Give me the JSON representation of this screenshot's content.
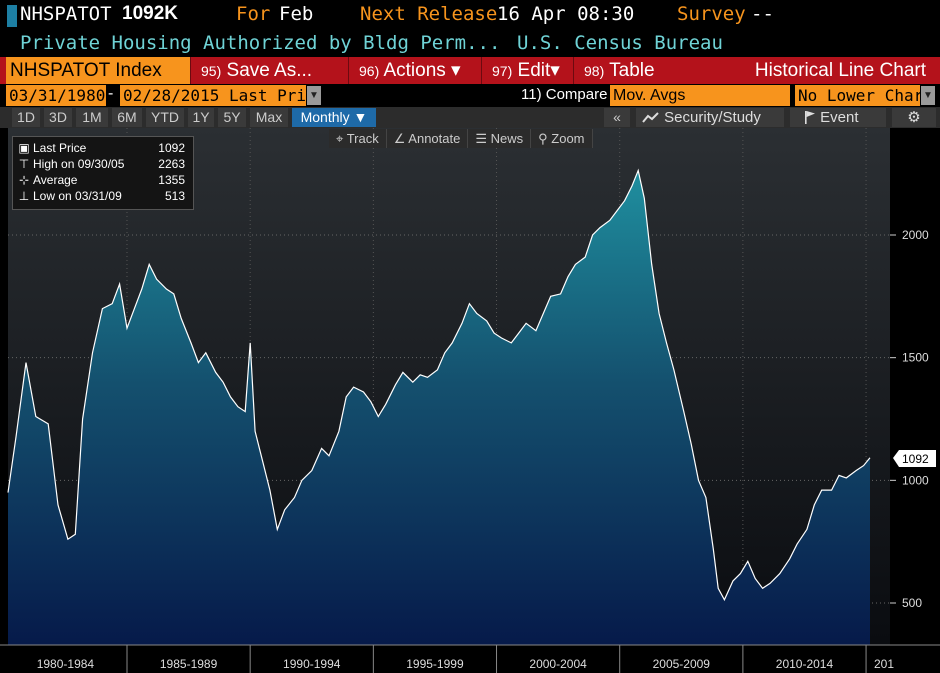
{
  "header": {
    "ticker": "NHSPATOT",
    "price": "1092K",
    "for_label": "For",
    "for_value": "Feb",
    "next_release_label": "Next Release",
    "next_release_value": "16 Apr 08:30",
    "survey_label": "Survey",
    "survey_value": "--",
    "description": "Private Housing Authorized by Bldg Perm...",
    "source": "U.S. Census Bureau"
  },
  "menu": {
    "index_label": "NHSPATOT Index",
    "save_as": {
      "num": "95)",
      "label": "Save As..."
    },
    "actions": {
      "num": "96)",
      "label": "Actions ▾"
    },
    "edit": {
      "num": "97)",
      "label": "Edit▾"
    },
    "table": {
      "num": "98)",
      "label": "Table"
    },
    "chart_type": "Historical Line Chart"
  },
  "range": {
    "start": "03/31/1980",
    "end": "02/28/2015",
    "price_type": "Last Price",
    "compare_label": "11) Compare",
    "compare_value": "Mov. Avgs",
    "lower_chart": "No Lower Chart"
  },
  "periods": [
    "1D",
    "3D",
    "1M",
    "6M",
    "YTD",
    "1Y",
    "5Y",
    "Max"
  ],
  "frequency": "Monthly ▼",
  "toolbar": {
    "security_study": "Security/Study",
    "event": "Event",
    "track": "Track",
    "annotate": "Annotate",
    "news": "News",
    "zoom": "Zoom"
  },
  "legend": {
    "last": {
      "label": "Last Price",
      "value": "1092"
    },
    "high": {
      "label": "High on 09/30/05",
      "value": "2263"
    },
    "average": {
      "label": "Average",
      "value": "1355"
    },
    "low": {
      "label": "Low on 03/31/09",
      "value": "513"
    }
  },
  "last_value_tag": "1092",
  "colors": {
    "orange": "#f7941d",
    "menu_red": "#b4121b",
    "teal_text": "#6fd3d6",
    "active_blue": "#1e6aa8"
  },
  "chart_data": {
    "type": "area",
    "ylim": [
      400,
      2400
    ],
    "y_ticks": [
      500,
      1000,
      1500,
      2000
    ],
    "x_labels": [
      "1980-1984",
      "1985-1989",
      "1990-1994",
      "1995-1999",
      "2000-2004",
      "2005-2009",
      "2010-2014",
      "201"
    ],
    "series": [
      {
        "values": [
          [
            1980.17,
            950
          ],
          [
            1980.5,
            1180
          ],
          [
            1980.9,
            1480
          ],
          [
            1981.3,
            1260
          ],
          [
            1981.8,
            1230
          ],
          [
            1982.2,
            900
          ],
          [
            1982.6,
            760
          ],
          [
            1982.9,
            780
          ],
          [
            1983.2,
            1250
          ],
          [
            1983.6,
            1520
          ],
          [
            1984.0,
            1700
          ],
          [
            1984.4,
            1720
          ],
          [
            1984.7,
            1800
          ],
          [
            1985.0,
            1620
          ],
          [
            1985.3,
            1700
          ],
          [
            1985.6,
            1780
          ],
          [
            1985.9,
            1880
          ],
          [
            1986.2,
            1820
          ],
          [
            1986.6,
            1780
          ],
          [
            1986.9,
            1760
          ],
          [
            1987.2,
            1660
          ],
          [
            1987.6,
            1560
          ],
          [
            1987.9,
            1480
          ],
          [
            1988.2,
            1520
          ],
          [
            1988.6,
            1440
          ],
          [
            1988.9,
            1400
          ],
          [
            1989.2,
            1340
          ],
          [
            1989.5,
            1300
          ],
          [
            1989.8,
            1280
          ],
          [
            1990.0,
            1560
          ],
          [
            1990.2,
            1200
          ],
          [
            1990.5,
            1080
          ],
          [
            1990.8,
            960
          ],
          [
            1991.1,
            800
          ],
          [
            1991.4,
            880
          ],
          [
            1991.8,
            930
          ],
          [
            1992.1,
            1000
          ],
          [
            1992.5,
            1040
          ],
          [
            1992.9,
            1130
          ],
          [
            1993.2,
            1100
          ],
          [
            1993.6,
            1200
          ],
          [
            1993.9,
            1340
          ],
          [
            1994.2,
            1380
          ],
          [
            1994.6,
            1360
          ],
          [
            1994.9,
            1320
          ],
          [
            1995.2,
            1260
          ],
          [
            1995.5,
            1310
          ],
          [
            1995.9,
            1390
          ],
          [
            1996.2,
            1440
          ],
          [
            1996.6,
            1400
          ],
          [
            1996.9,
            1430
          ],
          [
            1997.2,
            1420
          ],
          [
            1997.6,
            1450
          ],
          [
            1997.9,
            1520
          ],
          [
            1998.2,
            1560
          ],
          [
            1998.6,
            1640
          ],
          [
            1998.9,
            1720
          ],
          [
            1999.2,
            1680
          ],
          [
            1999.6,
            1650
          ],
          [
            1999.9,
            1600
          ],
          [
            2000.2,
            1580
          ],
          [
            2000.6,
            1560
          ],
          [
            2000.9,
            1600
          ],
          [
            2001.2,
            1640
          ],
          [
            2001.6,
            1610
          ],
          [
            2001.9,
            1680
          ],
          [
            2002.2,
            1750
          ],
          [
            2002.6,
            1760
          ],
          [
            2002.9,
            1830
          ],
          [
            2003.2,
            1880
          ],
          [
            2003.6,
            1910
          ],
          [
            2003.9,
            2000
          ],
          [
            2004.2,
            2030
          ],
          [
            2004.6,
            2060
          ],
          [
            2004.9,
            2100
          ],
          [
            2005.2,
            2140
          ],
          [
            2005.5,
            2200
          ],
          [
            2005.75,
            2263
          ],
          [
            2006.0,
            2150
          ],
          [
            2006.3,
            1880
          ],
          [
            2006.6,
            1680
          ],
          [
            2006.9,
            1560
          ],
          [
            2007.2,
            1450
          ],
          [
            2007.6,
            1280
          ],
          [
            2007.9,
            1150
          ],
          [
            2008.2,
            1000
          ],
          [
            2008.5,
            930
          ],
          [
            2008.8,
            720
          ],
          [
            2009.0,
            560
          ],
          [
            2009.25,
            513
          ],
          [
            2009.6,
            590
          ],
          [
            2009.9,
            620
          ],
          [
            2010.2,
            670
          ],
          [
            2010.5,
            600
          ],
          [
            2010.8,
            560
          ],
          [
            2011.1,
            580
          ],
          [
            2011.5,
            620
          ],
          [
            2011.9,
            680
          ],
          [
            2012.2,
            740
          ],
          [
            2012.6,
            800
          ],
          [
            2012.9,
            900
          ],
          [
            2013.2,
            960
          ],
          [
            2013.6,
            960
          ],
          [
            2013.9,
            1020
          ],
          [
            2014.2,
            1010
          ],
          [
            2014.6,
            1040
          ],
          [
            2014.9,
            1060
          ],
          [
            2015.16,
            1092
          ]
        ]
      }
    ]
  }
}
